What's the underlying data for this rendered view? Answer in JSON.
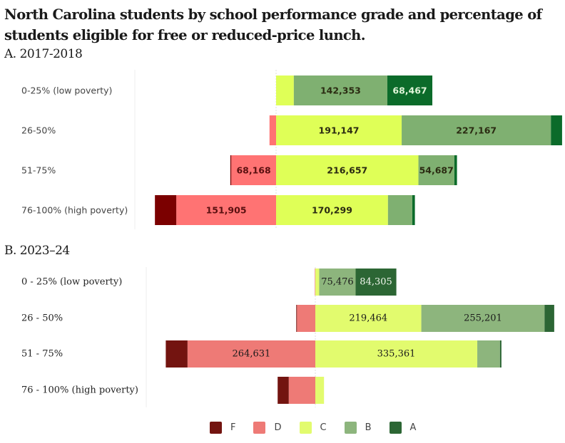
{
  "title": "North Carolina students by school performance grade and percentage of students eligible for free or reduced-price lunch.",
  "grades": [
    "F",
    "D",
    "C",
    "B",
    "A"
  ],
  "colors": {
    "A_panel": {
      "F": "#7b0000",
      "D": "#ff7373",
      "C": "#dfff57",
      "B": "#7fb071",
      "A": "#0b6b2a"
    },
    "B_panel": {
      "F": "#731410",
      "D": "#ee7a76",
      "C": "#e2fb6e",
      "B": "#8db57d",
      "A": "#2c6634"
    }
  },
  "legend": [
    {
      "label": "F",
      "color": "#731410"
    },
    {
      "label": "D",
      "color": "#ee7a76"
    },
    {
      "label": "C",
      "color": "#e2fb6e"
    },
    {
      "label": "B",
      "color": "#8db57d"
    },
    {
      "label": "A",
      "color": "#2c6634"
    }
  ],
  "chart_data": [
    {
      "type": "bar",
      "orientation": "horizontal-diverging-stacked",
      "title": "A. 2017-2018",
      "categories": [
        "0-25% (low poverty)",
        "26-50%",
        "51-75%",
        "76-100% (high poverty)"
      ],
      "series": [
        {
          "name": "F",
          "values": [
            0,
            0,
            1500,
            32500
          ]
        },
        {
          "name": "D",
          "values": [
            0,
            10000,
            68168,
            151905
          ]
        },
        {
          "name": "C",
          "values": [
            27000,
            191147,
            216657,
            170299
          ]
        },
        {
          "name": "B",
          "values": [
            142353,
            227167,
            54687,
            37000
          ]
        },
        {
          "name": "A",
          "values": [
            68467,
            17000,
            4000,
            4000
          ]
        }
      ],
      "labels": [
        {
          "row": 0,
          "grade": "B",
          "text": "142,353"
        },
        {
          "row": 0,
          "grade": "A",
          "text": "68,467"
        },
        {
          "row": 1,
          "grade": "C",
          "text": "191,147"
        },
        {
          "row": 1,
          "grade": "B",
          "text": "227,167"
        },
        {
          "row": 2,
          "grade": "D",
          "text": "68,168"
        },
        {
          "row": 2,
          "grade": "C",
          "text": "216,657"
        },
        {
          "row": 2,
          "grade": "B",
          "text": "54,687"
        },
        {
          "row": 3,
          "grade": "D",
          "text": "151,905"
        },
        {
          "row": 3,
          "grade": "C",
          "text": "170,299"
        }
      ],
      "negative_grades": [
        "F",
        "D"
      ],
      "positive_grades": [
        "C",
        "B",
        "A"
      ],
      "xlabel": "",
      "ylabel": "",
      "grid": false,
      "legend": "bottom"
    },
    {
      "type": "bar",
      "orientation": "horizontal-diverging-stacked",
      "title": "B. 2023–24",
      "categories": [
        "0 - 25% (low poverty)",
        "26 - 50%",
        "51 - 75%",
        "76 - 100% (high poverty)"
      ],
      "series": [
        {
          "name": "F",
          "values": [
            0,
            1500,
            45000,
            23000
          ]
        },
        {
          "name": "D",
          "values": [
            1000,
            38000,
            264631,
            55000
          ]
        },
        {
          "name": "C",
          "values": [
            8000,
            219464,
            335361,
            18000
          ]
        },
        {
          "name": "B",
          "values": [
            75476,
            255201,
            47000,
            0
          ]
        },
        {
          "name": "A",
          "values": [
            84305,
            20000,
            3000,
            0
          ]
        }
      ],
      "labels": [
        {
          "row": 0,
          "grade": "B",
          "text": "75,476"
        },
        {
          "row": 0,
          "grade": "A",
          "text": "84,305"
        },
        {
          "row": 1,
          "grade": "C",
          "text": "219,464"
        },
        {
          "row": 1,
          "grade": "B",
          "text": "255,201"
        },
        {
          "row": 2,
          "grade": "D",
          "text": "264,631"
        },
        {
          "row": 2,
          "grade": "C",
          "text": "335,361"
        }
      ],
      "negative_grades": [
        "F",
        "D"
      ],
      "positive_grades": [
        "C",
        "B",
        "A"
      ],
      "xlabel": "",
      "ylabel": "",
      "grid": false,
      "legend": "bottom"
    }
  ]
}
